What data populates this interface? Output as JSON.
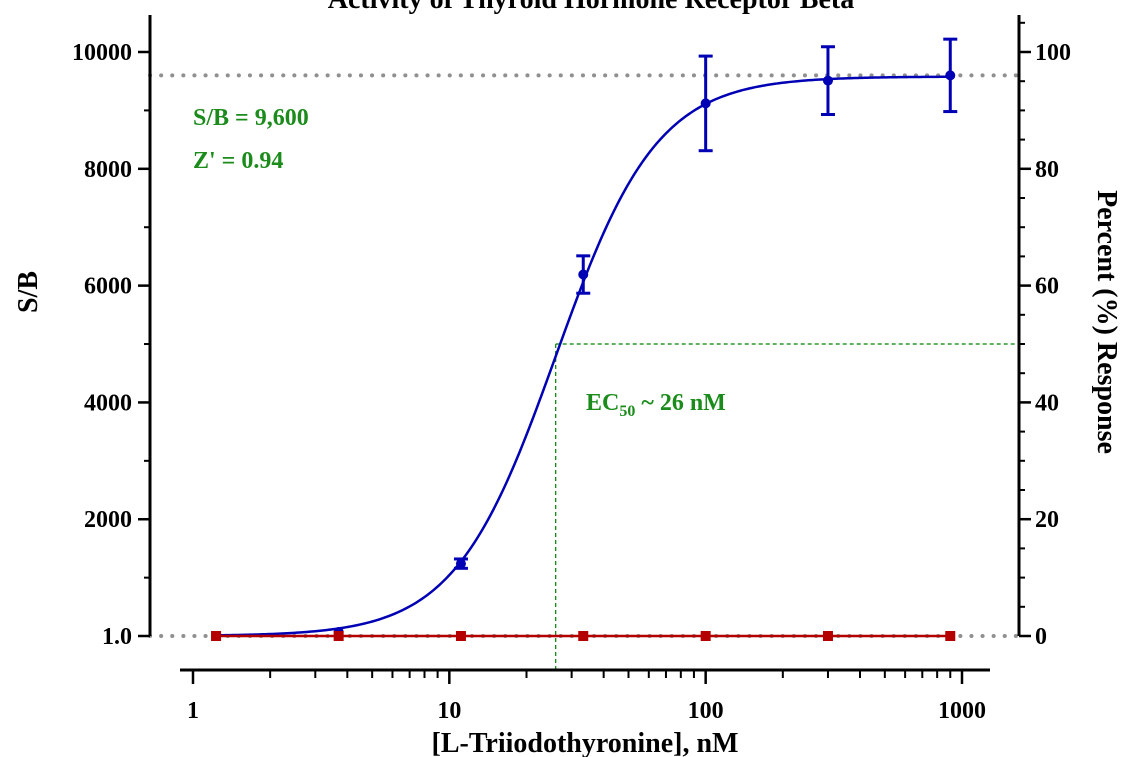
{
  "chart_data": {
    "type": "scatter",
    "title": "Activity of Thyroid Hormone Receptor Beta",
    "xlabel": "[L-Triiodothyronine], nM",
    "ylabel": "S/B",
    "y2label": "Percent (%) Response",
    "x_scale": "log",
    "xlim": [
      1,
      1000
    ],
    "ylim": [
      1,
      10000
    ],
    "y2lim": [
      0,
      100
    ],
    "x_ticks": [
      "1",
      "10",
      "100",
      "1000"
    ],
    "y_ticks": [
      "1.0",
      "2000",
      "4000",
      "6000",
      "8000",
      "10000"
    ],
    "y2_ticks": [
      "0",
      "20",
      "40",
      "60",
      "80",
      "100"
    ],
    "grid": false,
    "series": [
      {
        "color": "#0000b4",
        "marker": "circle",
        "x": [
          1.23,
          3.7,
          11.1,
          33.3,
          100,
          300,
          900
        ],
        "y": [
          1,
          70,
          1240,
          6190,
          9120,
          9510,
          9600
        ],
        "yerr": [
          10,
          20,
          80,
          320,
          810,
          580,
          620
        ],
        "fit": {
          "model": "4PL",
          "bottom": 1,
          "top": 9580,
          "ec50": 26,
          "hill": 2.2
        }
      },
      {
        "color": "#b40000",
        "marker": "square",
        "x": [
          1.23,
          3.7,
          11.1,
          33.3,
          100,
          300,
          900
        ],
        "y": [
          1,
          1,
          1,
          1,
          1,
          1,
          1
        ]
      }
    ],
    "reference_lines": [
      {
        "axis": "y",
        "value": 9600,
        "style": "dotted",
        "color": "#909090"
      },
      {
        "axis": "y",
        "value": 1,
        "style": "dotted",
        "color": "#909090"
      }
    ],
    "ec50_guide": {
      "x": 26,
      "percent": 50,
      "color": "#008000",
      "style": "dashed"
    },
    "annotations": {
      "sb": "S/B = 9,600",
      "zprime": "Z' = 0.94",
      "ec50_main": "EC",
      "ec50_sub": "50",
      "ec50_rest": " ~ 26 nM"
    },
    "annotation_color": "#1b8c1b"
  }
}
